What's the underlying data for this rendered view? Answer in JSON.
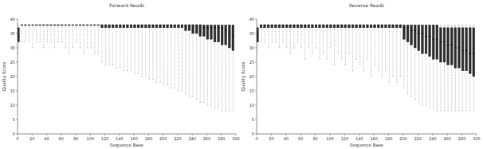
{
  "chart_data": [
    {
      "type": "box",
      "title": "Forward Reads",
      "x_label": "Sequence Base",
      "y_label": "Quality Score",
      "color": "#2b2b2b",
      "xlim": [
        0,
        300
      ],
      "xticks": [
        0,
        20,
        40,
        60,
        80,
        100,
        120,
        140,
        160,
        180,
        200,
        220,
        240,
        260,
        280,
        300
      ],
      "ylim": [
        0,
        40
      ],
      "yticks": [
        0,
        5,
        10,
        15,
        20,
        25,
        30,
        35,
        40
      ],
      "x": [
        1,
        6,
        11,
        16,
        21,
        26,
        31,
        36,
        41,
        46,
        51,
        56,
        61,
        66,
        71,
        76,
        81,
        86,
        91,
        96,
        101,
        106,
        111,
        116,
        121,
        126,
        131,
        136,
        141,
        146,
        151,
        156,
        161,
        166,
        171,
        176,
        181,
        186,
        191,
        196,
        201,
        206,
        211,
        216,
        221,
        226,
        231,
        236,
        241,
        246,
        251,
        256,
        261,
        266,
        271,
        276,
        281,
        286,
        291,
        296
      ],
      "low": [
        28,
        32,
        32,
        32,
        30,
        32,
        32,
        30,
        32,
        32,
        30,
        32,
        32,
        30,
        28,
        30,
        32,
        30,
        28,
        30,
        30,
        28,
        28,
        25,
        24,
        24,
        24,
        23,
        23,
        22,
        22,
        22,
        21,
        21,
        20,
        20,
        19,
        19,
        18,
        18,
        17,
        17,
        16,
        16,
        15,
        15,
        14,
        13,
        13,
        12,
        11,
        11,
        10,
        10,
        9,
        9,
        8,
        8,
        8,
        8
      ],
      "q1": [
        32,
        38,
        38,
        38,
        38,
        38,
        38,
        38,
        38,
        38,
        38,
        38,
        38,
        38,
        38,
        38,
        38,
        38,
        38,
        38,
        38,
        38,
        38,
        37,
        37,
        37,
        37,
        37,
        37,
        37,
        37,
        37,
        37,
        37,
        37,
        37,
        37,
        37,
        37,
        37,
        37,
        37,
        37,
        37,
        37,
        37,
        36,
        36,
        35,
        35,
        34,
        34,
        33,
        33,
        32,
        32,
        31,
        31,
        30,
        29
      ],
      "median": [
        34,
        38,
        38,
        38,
        38,
        38,
        38,
        38,
        38,
        38,
        38,
        38,
        38,
        38,
        38,
        38,
        38,
        38,
        38,
        38,
        38,
        38,
        38,
        38,
        38,
        38,
        38,
        38,
        38,
        38,
        38,
        38,
        38,
        38,
        38,
        38,
        38,
        38,
        38,
        38,
        38,
        38,
        38,
        38,
        38,
        38,
        38,
        38,
        38,
        38,
        38,
        37,
        37,
        37,
        37,
        37,
        37,
        36,
        35,
        34
      ],
      "q3": [
        37,
        38,
        38,
        38,
        38,
        38,
        38,
        38,
        38,
        38,
        38,
        38,
        38,
        38,
        38,
        38,
        38,
        38,
        38,
        38,
        38,
        38,
        38,
        38,
        38,
        38,
        38,
        38,
        38,
        38,
        38,
        38,
        38,
        38,
        38,
        38,
        38,
        38,
        38,
        38,
        38,
        38,
        38,
        38,
        38,
        38,
        38,
        38,
        38,
        38,
        38,
        38,
        38,
        38,
        38,
        38,
        38,
        38,
        38,
        38
      ],
      "high": [
        38,
        38,
        38,
        38,
        38,
        38,
        38,
        38,
        38,
        38,
        38,
        38,
        38,
        38,
        38,
        38,
        38,
        38,
        38,
        38,
        38,
        38,
        38,
        38,
        38,
        38,
        38,
        38,
        38,
        38,
        38,
        38,
        38,
        38,
        38,
        38,
        38,
        38,
        38,
        38,
        38,
        38,
        38,
        38,
        38,
        38,
        38,
        38,
        38,
        38,
        38,
        38,
        38,
        38,
        38,
        38,
        38,
        38,
        38,
        38
      ]
    },
    {
      "type": "box",
      "title": "Reverse Reads",
      "x_label": "Sequence Base",
      "y_label": "Quality Score",
      "color": "#2b2b2b",
      "xlim": [
        0,
        300
      ],
      "xticks": [
        0,
        20,
        40,
        60,
        80,
        100,
        120,
        140,
        160,
        180,
        200,
        220,
        240,
        260,
        280,
        300
      ],
      "ylim": [
        0,
        40
      ],
      "yticks": [
        0,
        5,
        10,
        15,
        20,
        25,
        30,
        35,
        40
      ],
      "x": [
        1,
        6,
        11,
        16,
        21,
        26,
        31,
        36,
        41,
        46,
        51,
        56,
        61,
        66,
        71,
        76,
        81,
        86,
        91,
        96,
        101,
        106,
        111,
        116,
        121,
        126,
        131,
        136,
        141,
        146,
        151,
        156,
        161,
        166,
        171,
        176,
        181,
        186,
        191,
        196,
        201,
        206,
        211,
        216,
        221,
        226,
        231,
        236,
        241,
        246,
        251,
        256,
        261,
        266,
        271,
        276,
        281,
        286,
        291,
        296
      ],
      "low": [
        28,
        32,
        32,
        30,
        32,
        32,
        30,
        32,
        30,
        28,
        30,
        32,
        30,
        26,
        30,
        28,
        30,
        26,
        28,
        26,
        30,
        24,
        28,
        26,
        24,
        28,
        22,
        26,
        24,
        22,
        26,
        20,
        24,
        22,
        20,
        22,
        18,
        20,
        18,
        20,
        16,
        14,
        13,
        12,
        11,
        10,
        10,
        9,
        9,
        8,
        8,
        8,
        8,
        8,
        8,
        8,
        8,
        8,
        8,
        8
      ],
      "q1": [
        32,
        37,
        37,
        37,
        37,
        37,
        37,
        37,
        37,
        37,
        37,
        37,
        37,
        37,
        37,
        37,
        37,
        37,
        37,
        37,
        37,
        37,
        37,
        37,
        37,
        37,
        37,
        37,
        37,
        37,
        37,
        37,
        37,
        37,
        37,
        37,
        37,
        37,
        37,
        37,
        33,
        32,
        31,
        30,
        29,
        28,
        28,
        27,
        26,
        26,
        25,
        25,
        24,
        24,
        23,
        23,
        22,
        22,
        21,
        20
      ],
      "median": [
        34,
        38,
        38,
        38,
        38,
        38,
        38,
        38,
        38,
        38,
        38,
        38,
        38,
        38,
        38,
        38,
        38,
        38,
        38,
        38,
        38,
        38,
        38,
        38,
        38,
        38,
        38,
        38,
        38,
        38,
        38,
        38,
        38,
        38,
        38,
        38,
        38,
        38,
        38,
        38,
        37,
        37,
        36,
        36,
        35,
        35,
        34,
        34,
        33,
        33,
        32,
        32,
        31,
        31,
        30,
        30,
        29,
        29,
        28,
        28
      ],
      "q3": [
        37,
        38,
        38,
        38,
        38,
        38,
        38,
        38,
        38,
        38,
        38,
        38,
        38,
        38,
        38,
        38,
        38,
        38,
        38,
        38,
        38,
        38,
        38,
        38,
        38,
        38,
        38,
        38,
        38,
        38,
        38,
        38,
        38,
        38,
        38,
        38,
        38,
        38,
        38,
        38,
        38,
        38,
        38,
        38,
        38,
        38,
        38,
        38,
        38,
        38,
        37,
        37,
        37,
        37,
        37,
        37,
        37,
        37,
        37,
        37
      ],
      "high": [
        38,
        38,
        38,
        38,
        38,
        38,
        38,
        38,
        38,
        38,
        38,
        38,
        38,
        38,
        38,
        38,
        38,
        38,
        38,
        38,
        38,
        38,
        38,
        38,
        38,
        38,
        38,
        38,
        38,
        38,
        38,
        38,
        38,
        38,
        38,
        38,
        38,
        38,
        38,
        38,
        38,
        38,
        38,
        38,
        38,
        38,
        38,
        38,
        38,
        38,
        38,
        38,
        38,
        38,
        38,
        38,
        38,
        38,
        38,
        38
      ]
    }
  ]
}
